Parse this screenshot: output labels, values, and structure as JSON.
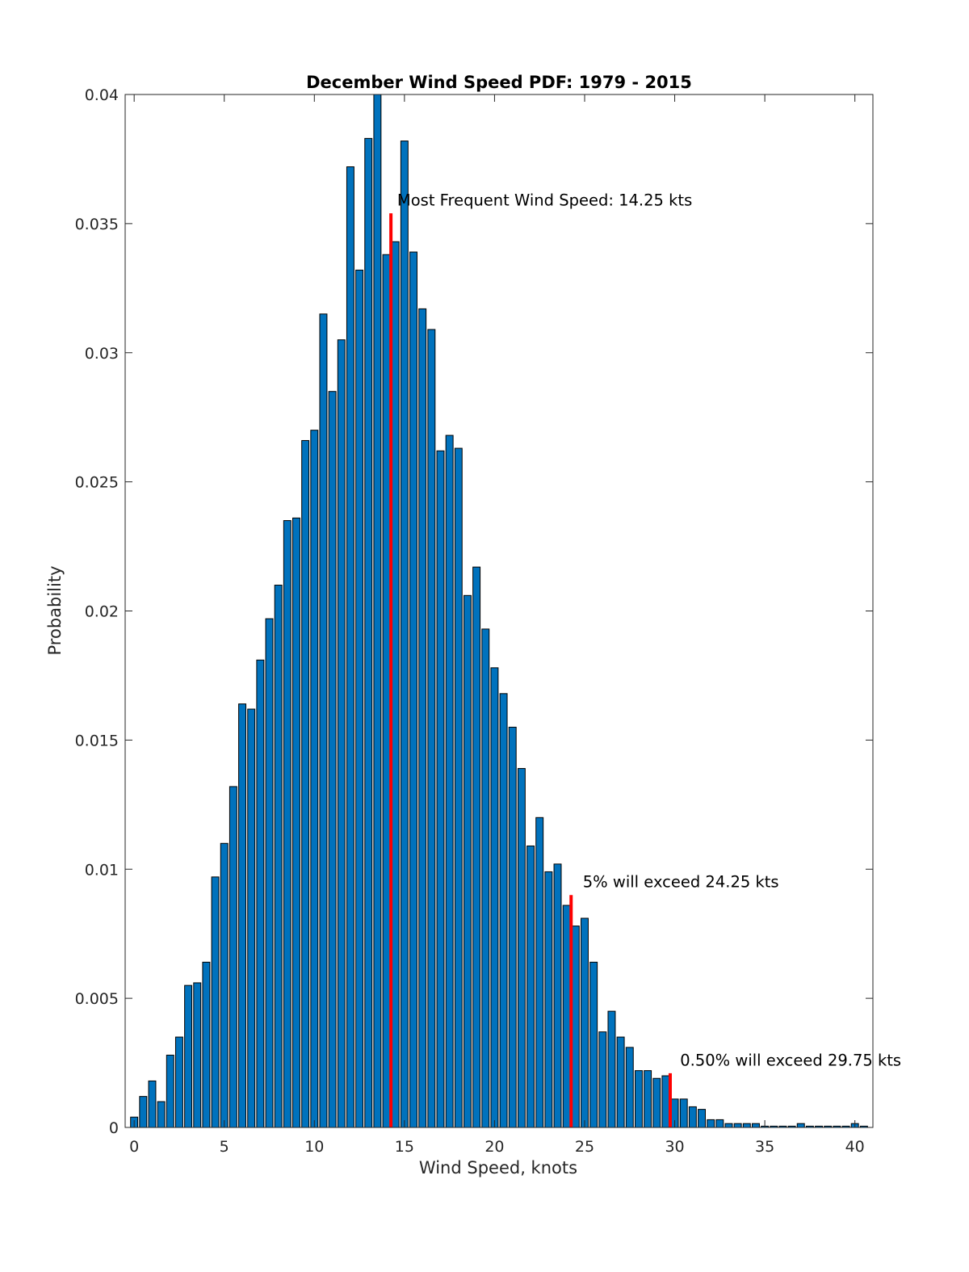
{
  "chart_data": {
    "type": "bar",
    "title": "December Wind Speed PDF: 1979 - 2015",
    "xlabel": "Wind Speed, knots",
    "ylabel": "Probability",
    "xlim": [
      -0.5,
      41
    ],
    "ylim": [
      0,
      0.04
    ],
    "xticks": [
      0,
      5,
      10,
      15,
      20,
      25,
      30,
      35,
      40
    ],
    "xtick_labels": [
      "0",
      "5",
      "10",
      "15",
      "20",
      "25",
      "30",
      "35",
      "40"
    ],
    "yticks": [
      0,
      0.005,
      0.01,
      0.015,
      0.02,
      0.025,
      0.03,
      0.035,
      0.04
    ],
    "ytick_labels": [
      "0",
      "0.005",
      "0.01",
      "0.015",
      "0.02",
      "0.025",
      "0.03",
      "0.035",
      "0.04"
    ],
    "bin_width": 0.5,
    "bar_color": "#0072BD",
    "marker_color": "#FF0000",
    "grid": false,
    "x": [
      0,
      0.5,
      1,
      1.5,
      2,
      2.5,
      3,
      3.5,
      4,
      4.5,
      5,
      5.5,
      6,
      6.5,
      7,
      7.5,
      8,
      8.5,
      9,
      9.5,
      10,
      10.5,
      11,
      11.5,
      12,
      12.5,
      13,
      13.5,
      14,
      14.5,
      15,
      15.5,
      16,
      16.5,
      17,
      17.5,
      18,
      18.5,
      19,
      19.5,
      20,
      20.5,
      21,
      21.5,
      22,
      22.5,
      23,
      23.5,
      24,
      24.5,
      25,
      25.5,
      26,
      26.5,
      27,
      27.5,
      28,
      28.5,
      29,
      29.5,
      30,
      30.5,
      31,
      31.5,
      32,
      32.5,
      33,
      33.5,
      34,
      34.5,
      35,
      35.5,
      36,
      36.5,
      37,
      37.5,
      38,
      38.5,
      39,
      39.5,
      40,
      40.5
    ],
    "values": [
      0.0004,
      0.0012,
      0.0018,
      0.001,
      0.0028,
      0.0035,
      0.0055,
      0.0056,
      0.0064,
      0.0097,
      0.011,
      0.0132,
      0.0164,
      0.0162,
      0.0181,
      0.0197,
      0.021,
      0.0235,
      0.0236,
      0.0266,
      0.027,
      0.0315,
      0.0285,
      0.0305,
      0.0372,
      0.0332,
      0.0383,
      0.04,
      0.0338,
      0.0343,
      0.0382,
      0.0339,
      0.0317,
      0.0309,
      0.0262,
      0.0268,
      0.0263,
      0.0206,
      0.0217,
      0.0193,
      0.0178,
      0.0168,
      0.0155,
      0.0139,
      0.0109,
      0.012,
      0.0099,
      0.0102,
      0.0086,
      0.0078,
      0.0081,
      0.0064,
      0.0037,
      0.0045,
      0.0035,
      0.0031,
      0.0022,
      0.0022,
      0.0019,
      0.002,
      0.0011,
      0.0011,
      0.0008,
      0.0007,
      0.0003,
      0.0003,
      0.00015,
      0.00015,
      0.00015,
      0.00015,
      5e-05,
      5e-05,
      5e-05,
      5e-05,
      0.00015,
      5e-05,
      5e-05,
      5e-05,
      5e-05,
      5e-05,
      0.00015,
      5e-05
    ],
    "markers": [
      {
        "x": 14.25,
        "y_top": 0.0354,
        "label": "Most Frequent Wind Speed: 14.25 kts",
        "label_x": 14.6,
        "label_y": 0.0357
      },
      {
        "x": 24.25,
        "y_top": 0.009,
        "label": "5% will exceed 24.25 kts",
        "label_x": 24.9,
        "label_y": 0.0093
      },
      {
        "x": 29.75,
        "y_top": 0.0021,
        "label": "0.50% will exceed 29.75 kts",
        "label_x": 30.3,
        "label_y": 0.0024
      }
    ]
  }
}
